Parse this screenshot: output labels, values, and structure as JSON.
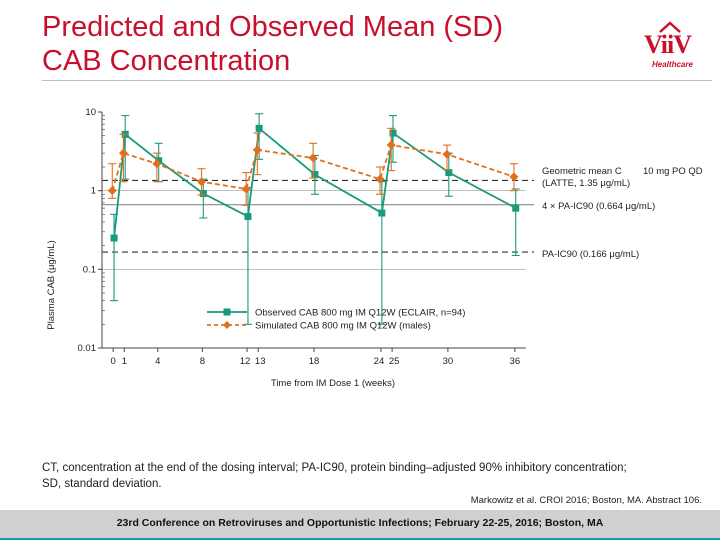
{
  "header": {
    "title_line1": "Predicted and Observed Mean (SD)",
    "title_line2": "CAB Concentration",
    "logo_text": "ViiV",
    "logo_sub": "Healthcare"
  },
  "colors": {
    "title": "#c8102e",
    "observed": "#1a9a7c",
    "simulated": "#e0701e",
    "reference": "#333333",
    "grid": "#9a9a9a"
  },
  "chart_data": {
    "type": "line",
    "xlabel": "Time from IM Dose 1 (weeks)",
    "ylabel": "Plasma CAB (μg/mL)",
    "yscale": "log",
    "xlim": [
      -1,
      37
    ],
    "ylim": [
      0.01,
      10
    ],
    "x_ticks": [
      0,
      1,
      4,
      8,
      12,
      13,
      18,
      24,
      25,
      30,
      36
    ],
    "x_tick_labels": [
      "0",
      "1",
      "4",
      "8",
      "12",
      "13",
      "18",
      "24",
      "25",
      "30",
      "36"
    ],
    "y_ticks": [
      0.01,
      0.1,
      1,
      10
    ],
    "y_tick_labels": [
      "0.01",
      "0.1",
      "1",
      "10"
    ],
    "series": [
      {
        "name": "Observed CAB 800 mg IM Q12W (ECLAIR, n=94)",
        "style": "solid-square",
        "x": [
          0,
          1,
          4,
          8,
          12,
          13,
          18,
          24,
          25,
          30,
          36
        ],
        "y": [
          0.25,
          5.2,
          2.4,
          0.92,
          0.47,
          6.2,
          1.6,
          0.52,
          5.4,
          1.7,
          0.6
        ],
        "y_low": [
          0.04,
          1.4,
          1.3,
          0.45,
          0.02,
          2.5,
          0.9,
          0.02,
          2.3,
          0.85,
          0.15
        ],
        "y_high": [
          0.5,
          9.0,
          4.0,
          1.4,
          1.1,
          9.5,
          2.8,
          1.3,
          9.0,
          3.0,
          1.05
        ]
      },
      {
        "name": "Simulated CAB 800 mg IM Q12W (males)",
        "style": "dashed-diamond",
        "x": [
          0,
          1,
          4,
          8,
          12,
          13,
          18,
          24,
          25,
          30,
          36
        ],
        "y": [
          1.0,
          3.0,
          2.2,
          1.3,
          1.05,
          3.3,
          2.6,
          1.4,
          3.8,
          2.9,
          1.5
        ],
        "y_low": [
          0.8,
          1.3,
          1.3,
          0.88,
          0.65,
          1.6,
          1.45,
          0.9,
          1.8,
          1.85,
          1.0
        ],
        "y_high": [
          2.2,
          5.2,
          3.0,
          1.9,
          1.7,
          5.4,
          4.0,
          2.0,
          6.2,
          3.8,
          2.2
        ]
      }
    ],
    "reference_lines": [
      {
        "value": 1.35,
        "style": "dashed",
        "label_line1": "Geometric mean C",
        "label_line2": "10 mg PO QD",
        "label_line3": "(LATTE, 1.35 μg/mL)"
      },
      {
        "value": 0.664,
        "style": "solid-gray",
        "label": "4 × PA-IC90 (0.664 μg/mL)"
      },
      {
        "value": 0.166,
        "style": "dashed",
        "label": "PA-IC90 (0.166 μg/mL)"
      }
    ]
  },
  "notes": {
    "line1": "CT, concentration at the end of the dosing interval; PA-IC90, protein binding–adjusted 90% inhibitory concentration;",
    "line2": "SD, standard deviation.",
    "citation": "Markowitz et al. CROI 2016; Boston, MA. Abstract 106."
  },
  "footer": {
    "text": "23rd Conference on Retroviruses and Opportunistic Infections; February 22-25, 2016; Boston, MA"
  }
}
